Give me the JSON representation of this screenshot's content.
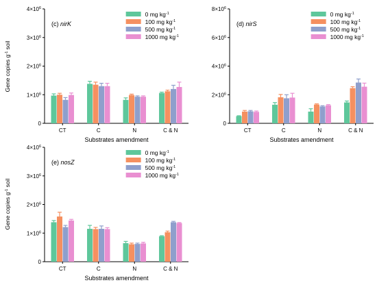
{
  "colors": [
    "#5ec79b",
    "#f59060",
    "#8f9fcc",
    "#e98fd1"
  ],
  "legend": [
    {
      "label": "0 mg kg",
      "sup": "-1"
    },
    {
      "label": "100 mg kg",
      "sup": "-1"
    },
    {
      "label": "500 mg kg",
      "sup": "-1"
    },
    {
      "label": "1000 mg kg",
      "sup": "-1"
    }
  ],
  "ytick_labels": [
    {
      "base": "0",
      "sup": ""
    },
    {
      "base": "1×10",
      "sup": "6"
    },
    {
      "base": "2×10",
      "sup": "6"
    },
    {
      "base": "3×10",
      "sup": "6"
    },
    {
      "base": "4×10",
      "sup": "6"
    }
  ],
  "chart_data": [
    {
      "type": "bar",
      "title_prefix": "(c) ",
      "title_gene": "nirK",
      "xlabel": "Substrates amendment",
      "ylabel": "Gene copies g",
      "ylabel_sup": "-1",
      "ylabel_suffix": " soil",
      "ylim": [
        0,
        4000000
      ],
      "categories": [
        "CT",
        "C",
        "N",
        "C & N"
      ],
      "series": [
        {
          "name": "0 mg kg-1",
          "values": [
            970000,
            1380000,
            820000,
            1060000
          ],
          "errors": [
            60000,
            90000,
            70000,
            30000
          ]
        },
        {
          "name": "100 mg kg-1",
          "values": [
            1000000,
            1350000,
            990000,
            1120000
          ],
          "errors": [
            50000,
            90000,
            30000,
            40000
          ]
        },
        {
          "name": "500 mg kg-1",
          "values": [
            820000,
            1300000,
            930000,
            1200000
          ],
          "errors": [
            80000,
            100000,
            30000,
            130000
          ]
        },
        {
          "name": "1000 mg kg-1",
          "values": [
            990000,
            1300000,
            930000,
            1270000
          ],
          "errors": [
            70000,
            100000,
            30000,
            170000
          ]
        }
      ]
    },
    {
      "type": "bar",
      "title_prefix": "(d) ",
      "title_gene": "nirS",
      "xlabel": "Substrates amendment",
      "ylabel": "",
      "ylabel_sup": "",
      "ylabel_suffix": "",
      "ylim": [
        0,
        8000000
      ],
      "categories": [
        "CT",
        "C",
        "N",
        "C & N"
      ],
      "series": [
        {
          "name": "0 mg kg-1",
          "values": [
            500000,
            1300000,
            820000,
            1460000
          ],
          "errors": [
            30000,
            150000,
            200000,
            100000
          ]
        },
        {
          "name": "100 mg kg-1",
          "values": [
            820000,
            1820000,
            1310000,
            2460000
          ],
          "errors": [
            80000,
            200000,
            50000,
            100000
          ]
        },
        {
          "name": "500 mg kg-1",
          "values": [
            840000,
            1750000,
            1180000,
            2850000
          ],
          "errors": [
            60000,
            250000,
            50000,
            250000
          ]
        },
        {
          "name": "1000 mg kg-1",
          "values": [
            800000,
            1800000,
            1260000,
            2560000
          ],
          "errors": [
            60000,
            300000,
            50000,
            250000
          ]
        }
      ]
    },
    {
      "type": "bar",
      "title_prefix": "(e) ",
      "title_gene": "nosZ",
      "xlabel": "Substrates amendment",
      "ylabel": "Gene copies g",
      "ylabel_sup": "-1",
      "ylabel_suffix": " soil",
      "ylim": [
        0,
        4000000
      ],
      "categories": [
        "CT",
        "C",
        "N",
        "C & N"
      ],
      "series": [
        {
          "name": "0 mg kg-1",
          "values": [
            1380000,
            1150000,
            650000,
            890000
          ],
          "errors": [
            60000,
            120000,
            60000,
            20000
          ]
        },
        {
          "name": "100 mg kg-1",
          "values": [
            1580000,
            1140000,
            610000,
            1030000
          ],
          "errors": [
            150000,
            60000,
            40000,
            40000
          ]
        },
        {
          "name": "500 mg kg-1",
          "values": [
            1210000,
            1150000,
            620000,
            1380000
          ],
          "errors": [
            60000,
            100000,
            30000,
            30000
          ]
        },
        {
          "name": "1000 mg kg-1",
          "values": [
            1440000,
            1140000,
            640000,
            1350000
          ],
          "errors": [
            40000,
            50000,
            40000,
            20000
          ]
        }
      ]
    }
  ]
}
